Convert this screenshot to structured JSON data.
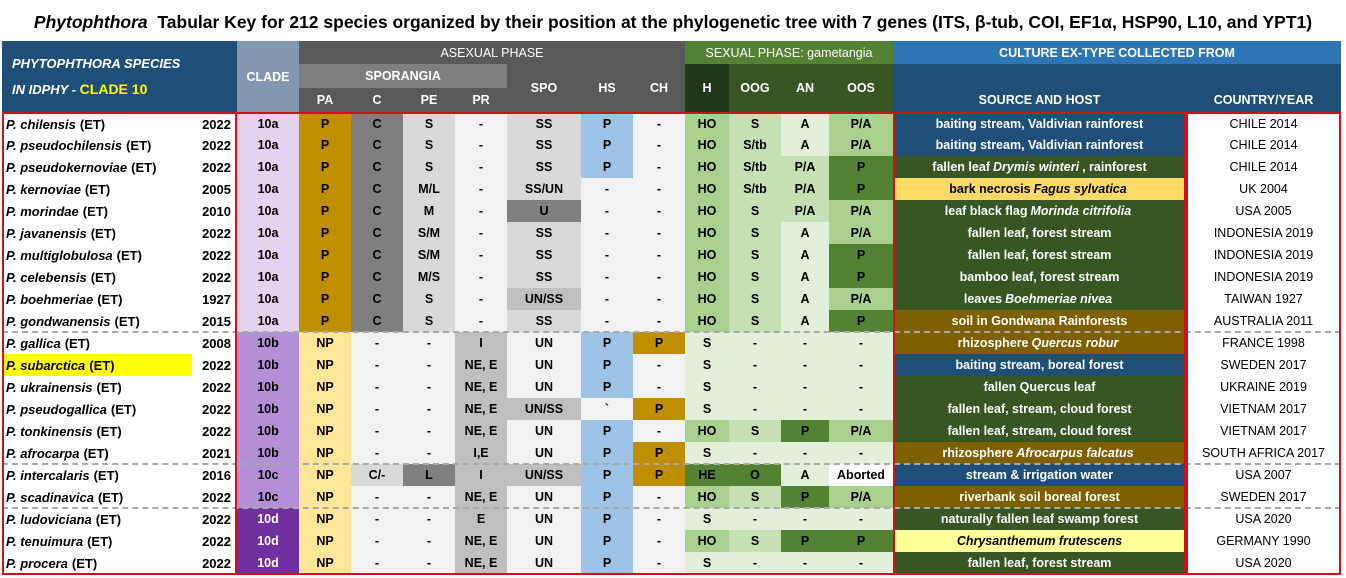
{
  "title": {
    "genus": "Phytophthora",
    "rest": "Tabular Key for 212 species organized by their position at the phylogenetic tree with 7 genes (ITS, β-tub, COI, EF1α, HSP90, L10, and YPT1)"
  },
  "header": {
    "species_line1": "PHYTOPHTHORA  SPECIES",
    "species_line2a": "IN IDPHY - ",
    "species_line2b": "CLADE 10",
    "clade": "CLADE",
    "asexual": "ASEXUAL PHASE",
    "sporangia": "SPORANGIA",
    "sexual": "SEXUAL PHASE: gametangia",
    "culture": "CULTURE EX-TYPE COLLECTED FROM",
    "cols": {
      "pa": "PA",
      "c": "C",
      "pe": "PE",
      "pr": "PR",
      "spo": "SPO",
      "hs": "HS",
      "ch": "CH",
      "h": "H",
      "oog": "OOG",
      "an": "AN",
      "oos": "OOS",
      "source": "SOURCE AND HOST",
      "country": "COUNTRY/YEAR"
    }
  },
  "colors": {
    "header_blue": "#1f4e79",
    "clade_purple_light": "#e2d3f0",
    "clade_purple_mid": "#b48fd8",
    "clade_purple_dark": "#7030a0",
    "pa_gold": "#bf8f00",
    "red_box": "#d0111b"
  },
  "rows": [
    {
      "species": "P. chilensis",
      "et": "(ET)",
      "year": "2022",
      "clade": "10a",
      "pa": "P",
      "c": "C",
      "pe": "S",
      "pr": "-",
      "spo": "SS",
      "hs": "P",
      "ch": "-",
      "h": "HO",
      "oog": "S",
      "an": "A",
      "oos": "P/A",
      "source": [
        "baiting stream, Valdivian rainforest"
      ],
      "country": "CHILE 2014"
    },
    {
      "species": "P. pseudochilensis",
      "et": "(ET)",
      "year": "2022",
      "clade": "10a",
      "pa": "P",
      "c": "C",
      "pe": "S",
      "pr": "-",
      "spo": "SS",
      "hs": "P",
      "ch": "-",
      "h": "HO",
      "oog": "S/tb",
      "an": "A",
      "oos": "P/A",
      "source": [
        "baiting stream, Valdivian rainforest"
      ],
      "country": "CHILE 2014"
    },
    {
      "species": "P. pseudokernoviae",
      "et": "(ET)",
      "year": "2022",
      "clade": "10a",
      "pa": "P",
      "c": "C",
      "pe": "S",
      "pr": "-",
      "spo": "SS",
      "hs": "P",
      "ch": "-",
      "h": "HO",
      "oog": "S/tb",
      "an": "P/A",
      "oos": "P",
      "source": [
        "fallen leaf ",
        "Drymis winteri",
        " , rainforest"
      ],
      "country": "CHILE 2014"
    },
    {
      "species": "P. kernoviae",
      "et": "(ET)",
      "year": "2005",
      "clade": "10a",
      "pa": "P",
      "c": "C",
      "pe": "M/L",
      "pr": "-",
      "spo": "SS/UN",
      "hs": "-",
      "ch": "-",
      "h": "HO",
      "oog": "S/tb",
      "an": "P/A",
      "oos": "P",
      "source": [
        "bark necrosis",
        "Fagus sylvatica",
        ""
      ],
      "country": "UK 2004"
    },
    {
      "species": "P. morindae",
      "et": "(ET)",
      "year": "2010",
      "clade": "10a",
      "pa": "P",
      "c": "C",
      "pe": "M",
      "pr": "-",
      "spo": "U",
      "hs": "-",
      "ch": "-",
      "h": "HO",
      "oog": "S",
      "an": "P/A",
      "oos": "P/A",
      "source": [
        "leaf black flag",
        "Morinda citrifolia",
        ""
      ],
      "country": "USA 2005"
    },
    {
      "species": "P. javanensis",
      "et": "(ET)",
      "year": "2022",
      "clade": "10a",
      "pa": "P",
      "c": "C",
      "pe": "S/M",
      "pr": "-",
      "spo": "SS",
      "hs": "-",
      "ch": "-",
      "h": "HO",
      "oog": "S",
      "an": "A",
      "oos": "P/A",
      "source": [
        "fallen leaf, forest stream"
      ],
      "country": "INDONESIA 2019"
    },
    {
      "species": "P. multiglobulosa",
      "et": "(ET)",
      "year": "2022",
      "clade": "10a",
      "pa": "P",
      "c": "C",
      "pe": "S/M",
      "pr": "-",
      "spo": "SS",
      "hs": "-",
      "ch": "-",
      "h": "HO",
      "oog": "S",
      "an": "A",
      "oos": "P",
      "source": [
        "fallen leaf, forest stream"
      ],
      "country": "INDONESIA 2019"
    },
    {
      "species": "P. celebensis",
      "et": "(ET)",
      "year": "2022",
      "clade": "10a",
      "pa": "P",
      "c": "C",
      "pe": "M/S",
      "pr": "-",
      "spo": "SS",
      "hs": "-",
      "ch": "-",
      "h": "HO",
      "oog": "S",
      "an": "A",
      "oos": "P",
      "source": [
        "bamboo leaf, forest stream"
      ],
      "country": "INDONESIA 2019"
    },
    {
      "species": "P. boehmeriae",
      "et": "(ET)",
      "year": "1927",
      "clade": "10a",
      "pa": "P",
      "c": "C",
      "pe": "S",
      "pr": "-",
      "spo": "UN/SS",
      "hs": "-",
      "ch": "-",
      "h": "HO",
      "oog": "S",
      "an": "A",
      "oos": "P/A",
      "source": [
        "leaves",
        "Boehmeriae nivea",
        ""
      ],
      "country": "TAIWAN 1927"
    },
    {
      "species": "P. gondwanensis",
      "et": "(ET)",
      "year": "2015",
      "clade": "10a",
      "pa": "P",
      "c": "C",
      "pe": "S",
      "pr": "-",
      "spo": "SS",
      "hs": "-",
      "ch": "-",
      "h": "HO",
      "oog": "S",
      "an": "A",
      "oos": "P",
      "source": [
        "soil in Gondwana Rainforests"
      ],
      "country": "AUSTRALIA 2011"
    },
    {
      "species": "P. gallica",
      "et": "(ET)",
      "year": "2008",
      "clade": "10b",
      "pa": "NP",
      "c": "-",
      "pe": "-",
      "pr": "I",
      "spo": "UN",
      "hs": "P",
      "ch": "P",
      "h": "S",
      "oog": "-",
      "an": "-",
      "oos": "-",
      "source": [
        "rhizosphere",
        "Quercus robur",
        ""
      ],
      "country": "FRANCE 1998"
    },
    {
      "species": "P. subarctica",
      "et": "(ET)",
      "year": "2022",
      "clade": "10b",
      "pa": "NP",
      "c": "-",
      "pe": "-",
      "pr": "NE, E",
      "spo": "UN",
      "hs": "P",
      "ch": "-",
      "h": "S",
      "oog": "-",
      "an": "-",
      "oos": "-",
      "source": [
        "baiting stream, boreal forest"
      ],
      "country": "SWEDEN 2017"
    },
    {
      "species": "P. ukrainensis",
      "et": "(ET)",
      "year": "2022",
      "clade": "10b",
      "pa": "NP",
      "c": "-",
      "pe": "-",
      "pr": "NE, E",
      "spo": "UN",
      "hs": "P",
      "ch": "-",
      "h": "S",
      "oog": "-",
      "an": "-",
      "oos": "-",
      "source": [
        "fallen Quercus leaf"
      ],
      "country": "UKRAINE 2019"
    },
    {
      "species": "P. pseudogallica",
      "et": "(ET)",
      "year": "2022",
      "clade": "10b",
      "pa": "NP",
      "c": "-",
      "pe": "-",
      "pr": "NE, E",
      "spo": "UN/SS",
      "hs": "`",
      "ch": "P",
      "h": "S",
      "oog": "-",
      "an": "-",
      "oos": "-",
      "source": [
        "fallen leaf, stream, cloud forest"
      ],
      "country": "VIETNAM 2017"
    },
    {
      "species": "P. tonkinensis",
      "et": "(ET)",
      "year": "2022",
      "clade": "10b",
      "pa": "NP",
      "c": "-",
      "pe": "-",
      "pr": "NE, E",
      "spo": "UN",
      "hs": "P",
      "ch": "-",
      "h": "HO",
      "oog": "S",
      "an": "P",
      "oos": "P/A",
      "source": [
        "fallen leaf, stream, cloud forest"
      ],
      "country": "VIETNAM 2017"
    },
    {
      "species": "P. afrocarpa",
      "et": "(ET)",
      "year": "2021",
      "clade": "10b",
      "pa": "NP",
      "c": "-",
      "pe": "-",
      "pr": "I,E",
      "spo": "UN",
      "hs": "P",
      "ch": "P",
      "h": "S",
      "oog": "-",
      "an": "-",
      "oos": "-",
      "source": [
        "rhizosphere",
        "Afrocarpus falcatus",
        ""
      ],
      "country": "SOUTH AFRICA 2017"
    },
    {
      "species": "P. intercalaris",
      "et": "(ET)",
      "year": "2016",
      "clade": "10c",
      "pa": "NP",
      "c": "C/-",
      "pe": "L",
      "pr": "I",
      "spo": "UN/SS",
      "hs": "P",
      "ch": "P",
      "h": "HE",
      "oog": "O",
      "an": "A",
      "oos": "Aborted",
      "source": [
        "stream & irrigation water"
      ],
      "country": "USA 2007"
    },
    {
      "species": "P. scadinavica",
      "et": "(ET)",
      "year": "2022",
      "clade": "10c",
      "pa": "NP",
      "c": "-",
      "pe": "-",
      "pr": "NE, E",
      "spo": "UN",
      "hs": "P",
      "ch": "-",
      "h": "HO",
      "oog": "S",
      "an": "P",
      "oos": "P/A",
      "source": [
        "riverbank soil boreal forest"
      ],
      "country": "SWEDEN 2017"
    },
    {
      "species": "P. ludoviciana",
      "et": "(ET)",
      "year": "2022",
      "clade": "10d",
      "pa": "NP",
      "c": "-",
      "pe": "-",
      "pr": "E",
      "spo": "UN",
      "hs": "P",
      "ch": "-",
      "h": "S",
      "oog": "-",
      "an": "-",
      "oos": "-",
      "source": [
        "naturally fallen leaf swamp forest"
      ],
      "country": "USA 2020"
    },
    {
      "species": "P. tenuimura",
      "et": "(ET)",
      "year": "2022",
      "clade": "10d",
      "pa": "NP",
      "c": "-",
      "pe": "-",
      "pr": "NE, E",
      "spo": "UN",
      "hs": "P",
      "ch": "-",
      "h": "HO",
      "oog": "S",
      "an": "P",
      "oos": "P",
      "source": [
        "",
        "Chrysanthemum frutescens",
        ""
      ],
      "country": "GERMANY 1990"
    },
    {
      "species": "P. procera",
      "et": "(ET)",
      "year": "2022",
      "clade": "10d",
      "pa": "NP",
      "c": "-",
      "pe": "-",
      "pr": "NE, E",
      "spo": "UN",
      "hs": "P",
      "ch": "-",
      "h": "S",
      "oog": "-",
      "an": "-",
      "oos": "-",
      "source": [
        "fallen leaf, forest stream"
      ],
      "country": "USA 2020"
    }
  ]
}
